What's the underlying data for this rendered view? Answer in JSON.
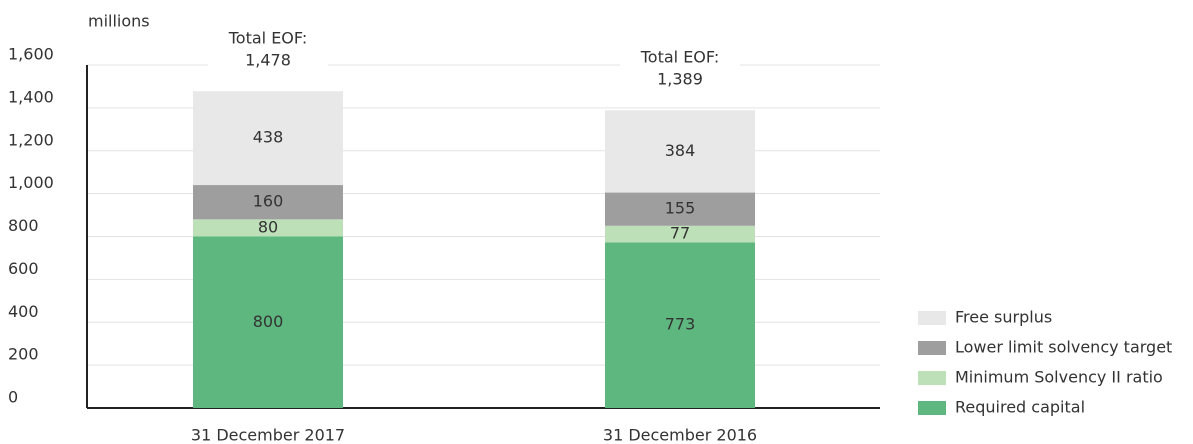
{
  "chart_data": {
    "type": "stacked_bar",
    "y_label": "millions",
    "categories": [
      "31 December 2017",
      "31 December 2016"
    ],
    "series": [
      {
        "name": "Required capital",
        "color": "#5db77f",
        "values": [
          800,
          773
        ]
      },
      {
        "name": "Minimum Solvency II ratio",
        "color": "#bde0b9",
        "values": [
          80,
          77
        ]
      },
      {
        "name": "Lower limit solvency target",
        "color": "#9e9e9e",
        "values": [
          160,
          155
        ]
      },
      {
        "name": "Free surplus",
        "color": "#e8e8e8",
        "values": [
          438,
          384
        ]
      }
    ],
    "total_label": "Total EOF:",
    "totals": [
      1478,
      1389
    ],
    "totals_labels": [
      "1,478",
      "1,389"
    ],
    "ylim": [
      0,
      1600
    ],
    "yticks": [
      0,
      200,
      400,
      600,
      800,
      {
        "value": 1000,
        "label": "1,000"
      },
      {
        "value": 1200,
        "label": "1,200"
      },
      {
        "value": 1400,
        "label": "1,400"
      },
      {
        "value": 1600,
        "label": "1,600"
      }
    ],
    "grid": true,
    "legend": "lower right"
  }
}
